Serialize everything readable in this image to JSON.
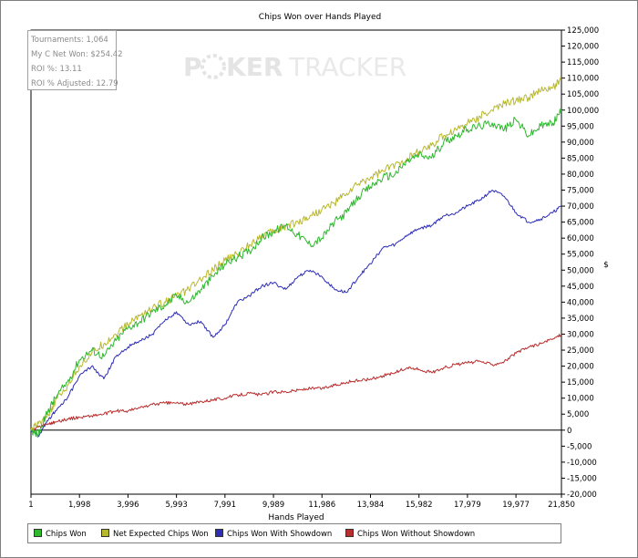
{
  "title": "Chips Won over Hands Played",
  "stats": {
    "tournaments": "Tournaments: 1,064",
    "net_won": "My C Net Won: $254.42",
    "roi": "ROI %: 13.11",
    "roi_adjusted": "ROI % Adjusted: 12.79"
  },
  "watermark": {
    "text_left": "P",
    "text_mid": "KER",
    "text_right": "TRACKER"
  },
  "chart_data": {
    "type": "line",
    "title": "Chips Won over Hands Played",
    "xlabel": "Hands Played",
    "ylabel": "$",
    "x_ticks": [
      "1",
      "1,998",
      "3,996",
      "5,993",
      "7,991",
      "9,989",
      "11,986",
      "13,984",
      "15,982",
      "17,979",
      "19,977",
      "21,850"
    ],
    "x_tick_values": [
      1,
      1998,
      3996,
      5993,
      7991,
      9989,
      11986,
      13984,
      15982,
      17979,
      19977,
      21850
    ],
    "xlim": [
      1,
      21850
    ],
    "ylim": [
      -20000,
      125000
    ],
    "y_ticks": [
      "-20,000",
      "-15,000",
      "-10,000",
      "-5,000",
      "0",
      "5,000",
      "10,000",
      "15,000",
      "20,000",
      "25,000",
      "30,000",
      "35,000",
      "40,000",
      "45,000",
      "50,000",
      "55,000",
      "60,000",
      "65,000",
      "70,000",
      "75,000",
      "80,000",
      "85,000",
      "90,000",
      "95,000",
      "100,000",
      "105,000",
      "110,000",
      "115,000",
      "120,000",
      "125,000"
    ],
    "y_tick_values": [
      -20000,
      -15000,
      -10000,
      -5000,
      0,
      5000,
      10000,
      15000,
      20000,
      25000,
      30000,
      35000,
      40000,
      45000,
      50000,
      55000,
      60000,
      65000,
      70000,
      75000,
      80000,
      85000,
      90000,
      95000,
      100000,
      105000,
      110000,
      115000,
      120000,
      125000
    ],
    "grid": false,
    "legend": "bottom",
    "series": [
      {
        "name": "Chips Won",
        "color": "#2db82d",
        "x": [
          1,
          300,
          700,
          1000,
          1500,
          1998,
          2500,
          3000,
          3500,
          3996,
          4500,
          5000,
          5500,
          5993,
          6500,
          7000,
          7500,
          7991,
          8500,
          9000,
          9500,
          9989,
          10500,
          11000,
          11500,
          11986,
          12500,
          13000,
          13500,
          13984,
          14500,
          15000,
          15500,
          15982,
          16500,
          17000,
          17500,
          17979,
          18500,
          19000,
          19500,
          19977,
          20500,
          21000,
          21500,
          21850
        ],
        "y": [
          0,
          -1500,
          6000,
          10000,
          15000,
          22000,
          25000,
          23000,
          28000,
          32000,
          34000,
          37000,
          39000,
          42000,
          40000,
          44000,
          48000,
          52000,
          54000,
          56000,
          60000,
          62000,
          64000,
          61000,
          58000,
          60000,
          65000,
          68000,
          73000,
          76000,
          79000,
          80000,
          84000,
          86000,
          85000,
          90000,
          92000,
          94000,
          95000,
          96000,
          94000,
          97000,
          92000,
          95000,
          96000,
          100000
        ]
      },
      {
        "name": "Net Expected Chips Won",
        "color": "#b8b82d",
        "x": [
          1,
          300,
          700,
          1000,
          1500,
          1998,
          2500,
          3000,
          3500,
          3996,
          4500,
          5000,
          5500,
          5993,
          6500,
          7000,
          7500,
          7991,
          8500,
          9000,
          9500,
          9989,
          10500,
          11000,
          11500,
          11986,
          12500,
          13000,
          13500,
          13984,
          14500,
          15000,
          15500,
          15982,
          16500,
          17000,
          17500,
          17979,
          18500,
          19000,
          19500,
          19977,
          20500,
          21000,
          21500,
          21850
        ],
        "y": [
          0,
          2000,
          5000,
          9000,
          14000,
          20000,
          24000,
          27000,
          30000,
          33000,
          36000,
          38000,
          40000,
          42000,
          44000,
          47000,
          50000,
          53000,
          55000,
          58000,
          61000,
          62000,
          64000,
          65000,
          67000,
          69000,
          71000,
          74000,
          77000,
          79000,
          81000,
          83000,
          85000,
          87000,
          89000,
          92000,
          94000,
          96000,
          98000,
          100000,
          102000,
          103000,
          104000,
          106000,
          107000,
          110000
        ]
      },
      {
        "name": "Chips Won With Showdown",
        "color": "#2d2db8",
        "x": [
          1,
          300,
          700,
          1000,
          1500,
          1998,
          2500,
          3000,
          3500,
          3996,
          4500,
          5000,
          5500,
          5993,
          6500,
          7000,
          7500,
          7991,
          8500,
          9000,
          9500,
          9989,
          10500,
          11000,
          11500,
          11986,
          12500,
          13000,
          13500,
          13984,
          14500,
          15000,
          15500,
          15982,
          16500,
          17000,
          17500,
          17979,
          18500,
          19000,
          19500,
          19977,
          20500,
          21000,
          21500,
          21850
        ],
        "y": [
          0,
          -2000,
          3000,
          6000,
          10000,
          17000,
          20000,
          16000,
          23000,
          26000,
          28000,
          30000,
          34000,
          37000,
          33000,
          34000,
          29000,
          33000,
          40000,
          42000,
          45000,
          46000,
          44000,
          48000,
          50000,
          48000,
          44000,
          43000,
          48000,
          52000,
          57000,
          58000,
          61000,
          63000,
          64000,
          67000,
          68000,
          70000,
          72000,
          75000,
          73000,
          68000,
          65000,
          66000,
          68000,
          70000
        ]
      },
      {
        "name": "Chips Won Without Showdown",
        "color": "#b82d2d",
        "x": [
          1,
          300,
          700,
          1000,
          1500,
          1998,
          2500,
          3000,
          3500,
          3996,
          4500,
          5000,
          5500,
          5993,
          6500,
          7000,
          7500,
          7991,
          8500,
          9000,
          9500,
          9989,
          10500,
          11000,
          11500,
          11986,
          12500,
          13000,
          13500,
          13984,
          14500,
          15000,
          15500,
          15982,
          16500,
          17000,
          17500,
          17979,
          18500,
          19000,
          19500,
          19977,
          20500,
          21000,
          21500,
          21850
        ],
        "y": [
          0,
          1000,
          2000,
          2500,
          3500,
          4000,
          4500,
          5000,
          6000,
          6000,
          7000,
          8000,
          8500,
          8500,
          8000,
          9000,
          9500,
          10000,
          11000,
          11500,
          11000,
          12000,
          12000,
          12500,
          13000,
          13000,
          14000,
          15000,
          15500,
          16000,
          17000,
          18000,
          19500,
          19000,
          18000,
          19500,
          20500,
          21000,
          21500,
          20500,
          21500,
          24000,
          26000,
          27000,
          28500,
          30000
        ]
      }
    ]
  },
  "legend": {
    "items": [
      "Chips Won",
      "Net Expected Chips Won",
      "Chips Won With Showdown",
      "Chips Won Without Showdown"
    ]
  }
}
